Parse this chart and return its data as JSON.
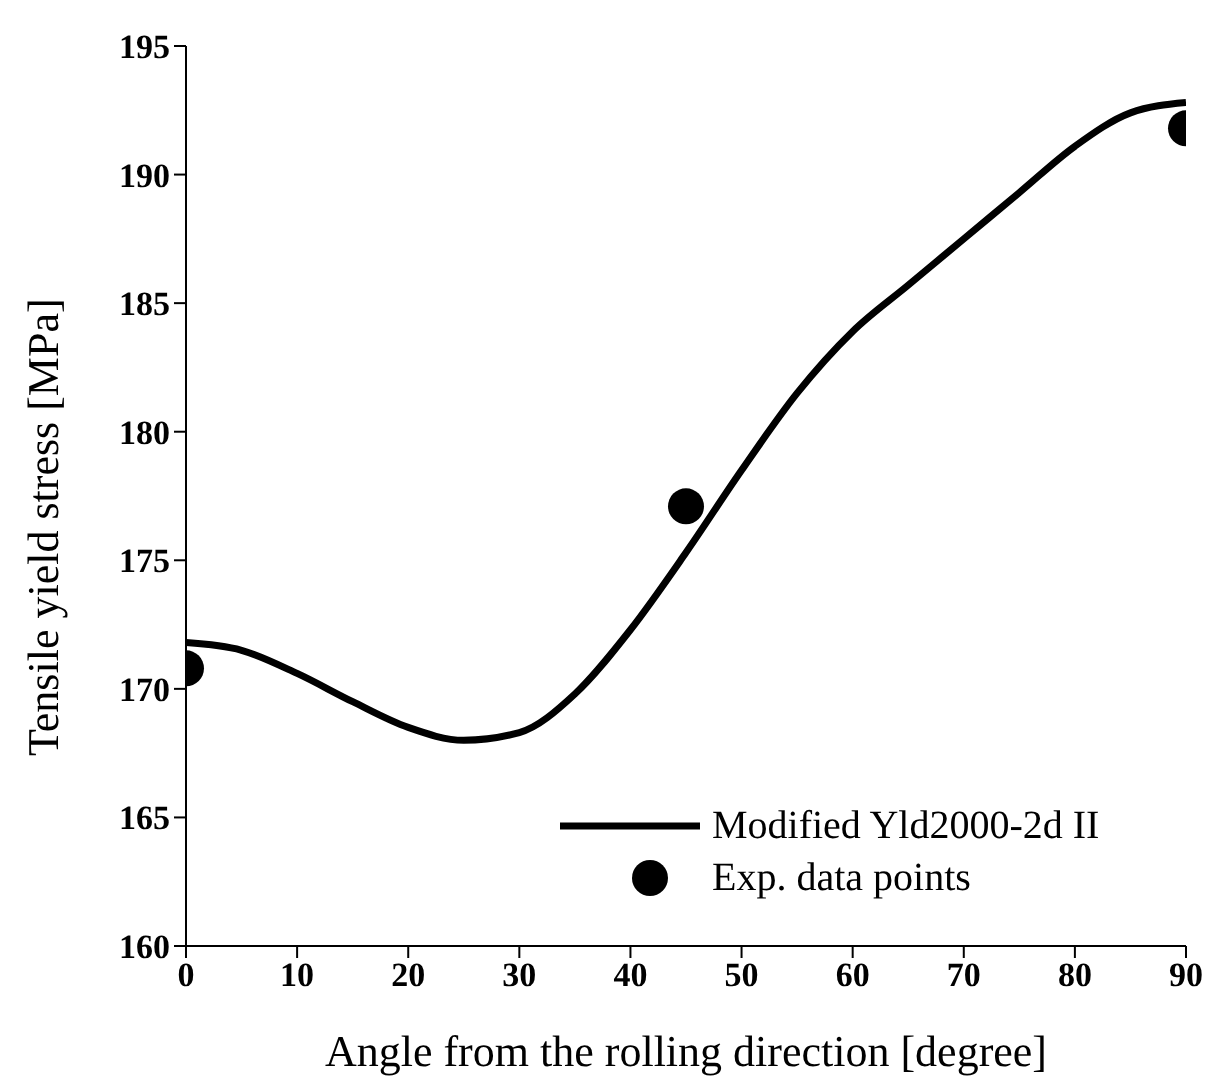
{
  "chart_data": {
    "type": "line",
    "xlabel": "Angle from the rolling direction [degree]",
    "ylabel": "Tensile yield stress [MPa]",
    "xlim": [
      0,
      90
    ],
    "xticks": [
      0,
      10,
      20,
      30,
      40,
      50,
      60,
      70,
      80,
      90
    ],
    "ylim": [
      160,
      195
    ],
    "yticks": [
      160,
      165,
      170,
      175,
      180,
      185,
      190,
      195
    ],
    "grid": false,
    "legend": "bottom right",
    "series": [
      {
        "name": "Modified Yld2000-2d II",
        "color": "#000000",
        "marker": "none",
        "line_style": "solid",
        "x": [
          0,
          5,
          10,
          15,
          20,
          25,
          30,
          35,
          40,
          45,
          50,
          55,
          60,
          65,
          70,
          75,
          80,
          85,
          90
        ],
        "values": [
          171.8,
          171.5,
          170.6,
          169.5,
          168.5,
          168.0,
          168.3,
          169.8,
          172.3,
          175.3,
          178.5,
          181.5,
          183.9,
          185.7,
          187.5,
          189.3,
          191.1,
          192.4,
          192.8
        ]
      },
      {
        "name": "Exp. data points",
        "type": "scatter",
        "color": "#000000",
        "marker": "circle",
        "x": [
          0,
          45,
          90
        ],
        "values": [
          170.8,
          177.1,
          191.8
        ]
      }
    ]
  }
}
